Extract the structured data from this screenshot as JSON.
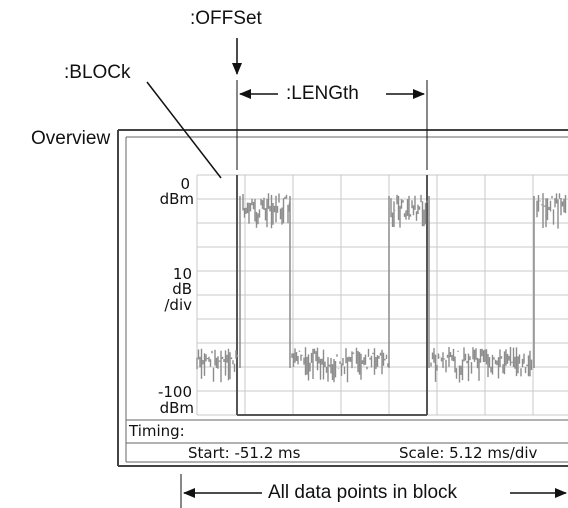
{
  "annotations": {
    "offset": ":OFFSet",
    "block": ":BLOCk",
    "length": ":LENGth",
    "overview": "Overview",
    "all_points": "All data points in block"
  },
  "screen": {
    "y_top": "0",
    "y_top_unit": "dBm",
    "y_scale_value": "10",
    "y_scale_unit": "dB",
    "y_scale_per": "/div",
    "y_bottom": "-100",
    "y_bottom_unit": "dBm",
    "timing_label": "Timing:",
    "start_text": "Start: -51.2 ms",
    "scale_text": "Scale: 5.12 ms/div"
  },
  "colors": {
    "trace": "#8c8c8c",
    "grid": "#c8c8c8",
    "frame": "#444444"
  }
}
